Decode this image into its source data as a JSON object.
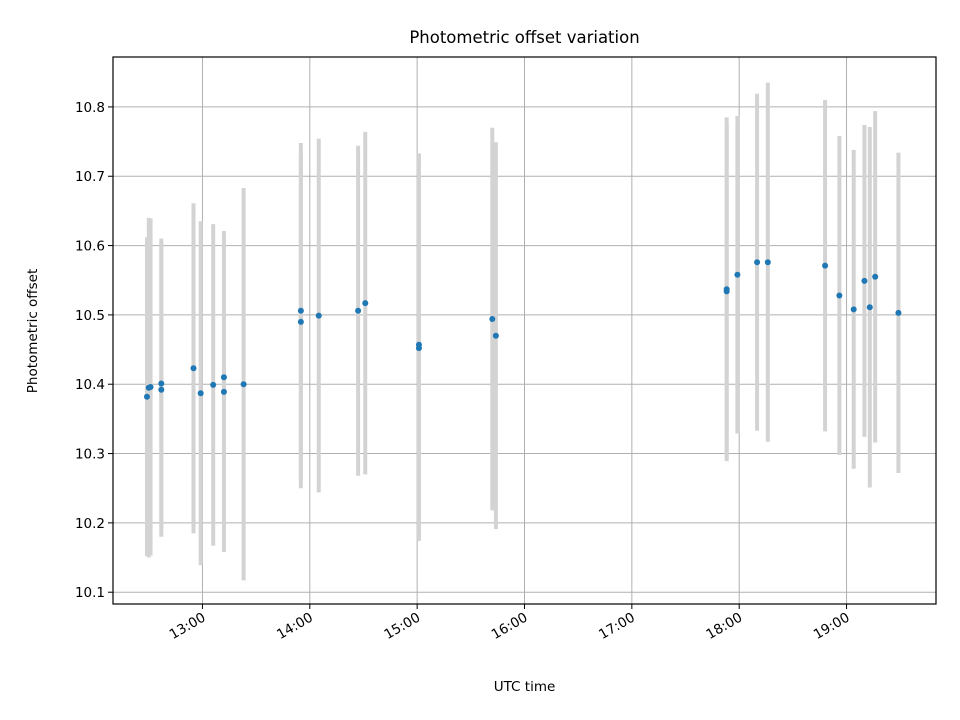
{
  "chart_data": {
    "type": "scatter",
    "title": "Photometric offset variation",
    "xlabel": "UTC time",
    "ylabel": "Photometric offset",
    "x_ticks": [
      "13:00",
      "14:00",
      "15:00",
      "16:00",
      "17:00",
      "18:00",
      "19:00"
    ],
    "y_ticks": [
      "10.1",
      "10.2",
      "10.3",
      "10.4",
      "10.5",
      "10.6",
      "10.7",
      "10.8"
    ],
    "xlim": [
      "12:10",
      "19:50"
    ],
    "ylim": [
      10.083,
      10.872
    ],
    "grid": true,
    "marker_color": "#1f77b4",
    "errorbar_color": "#d3d3d3",
    "points": [
      {
        "x": "12:29",
        "y": 10.382,
        "err": 0.23
      },
      {
        "x": "12:30",
        "y": 10.395,
        "err": 0.245
      },
      {
        "x": "12:31",
        "y": 10.396,
        "err": 0.243
      },
      {
        "x": "12:37",
        "y": 10.392,
        "err": 0.212
      },
      {
        "x": "12:37",
        "y": 10.401,
        "err": 0.209
      },
      {
        "x": "12:55",
        "y": 10.423,
        "err": 0.238
      },
      {
        "x": "12:59",
        "y": 10.387,
        "err": 0.248
      },
      {
        "x": "13:06",
        "y": 10.399,
        "err": 0.232
      },
      {
        "x": "13:12",
        "y": 10.389,
        "err": 0.231
      },
      {
        "x": "13:12",
        "y": 10.41,
        "err": 0.211
      },
      {
        "x": "13:23",
        "y": 10.4,
        "err": 0.283
      },
      {
        "x": "13:55",
        "y": 10.49,
        "err": 0.24
      },
      {
        "x": "13:55",
        "y": 10.506,
        "err": 0.242
      },
      {
        "x": "14:05",
        "y": 10.499,
        "err": 0.255
      },
      {
        "x": "14:27",
        "y": 10.506,
        "err": 0.238
      },
      {
        "x": "14:31",
        "y": 10.517,
        "err": 0.247
      },
      {
        "x": "15:01",
        "y": 10.452,
        "err": 0.278
      },
      {
        "x": "15:01",
        "y": 10.457,
        "err": 0.276
      },
      {
        "x": "15:42",
        "y": 10.494,
        "err": 0.276
      },
      {
        "x": "15:44",
        "y": 10.47,
        "err": 0.279
      },
      {
        "x": "17:53",
        "y": 10.534,
        "err": 0.242
      },
      {
        "x": "17:53",
        "y": 10.537,
        "err": 0.248
      },
      {
        "x": "17:59",
        "y": 10.558,
        "err": 0.229
      },
      {
        "x": "18:10",
        "y": 10.576,
        "err": 0.243
      },
      {
        "x": "18:16",
        "y": 10.576,
        "err": 0.259
      },
      {
        "x": "18:48",
        "y": 10.571,
        "err": 0.239
      },
      {
        "x": "18:56",
        "y": 10.528,
        "err": 0.23
      },
      {
        "x": "19:04",
        "y": 10.508,
        "err": 0.23
      },
      {
        "x": "19:10",
        "y": 10.549,
        "err": 0.225
      },
      {
        "x": "19:13",
        "y": 10.511,
        "err": 0.26
      },
      {
        "x": "19:16",
        "y": 10.555,
        "err": 0.239
      },
      {
        "x": "19:29",
        "y": 10.503,
        "err": 0.231
      }
    ]
  }
}
